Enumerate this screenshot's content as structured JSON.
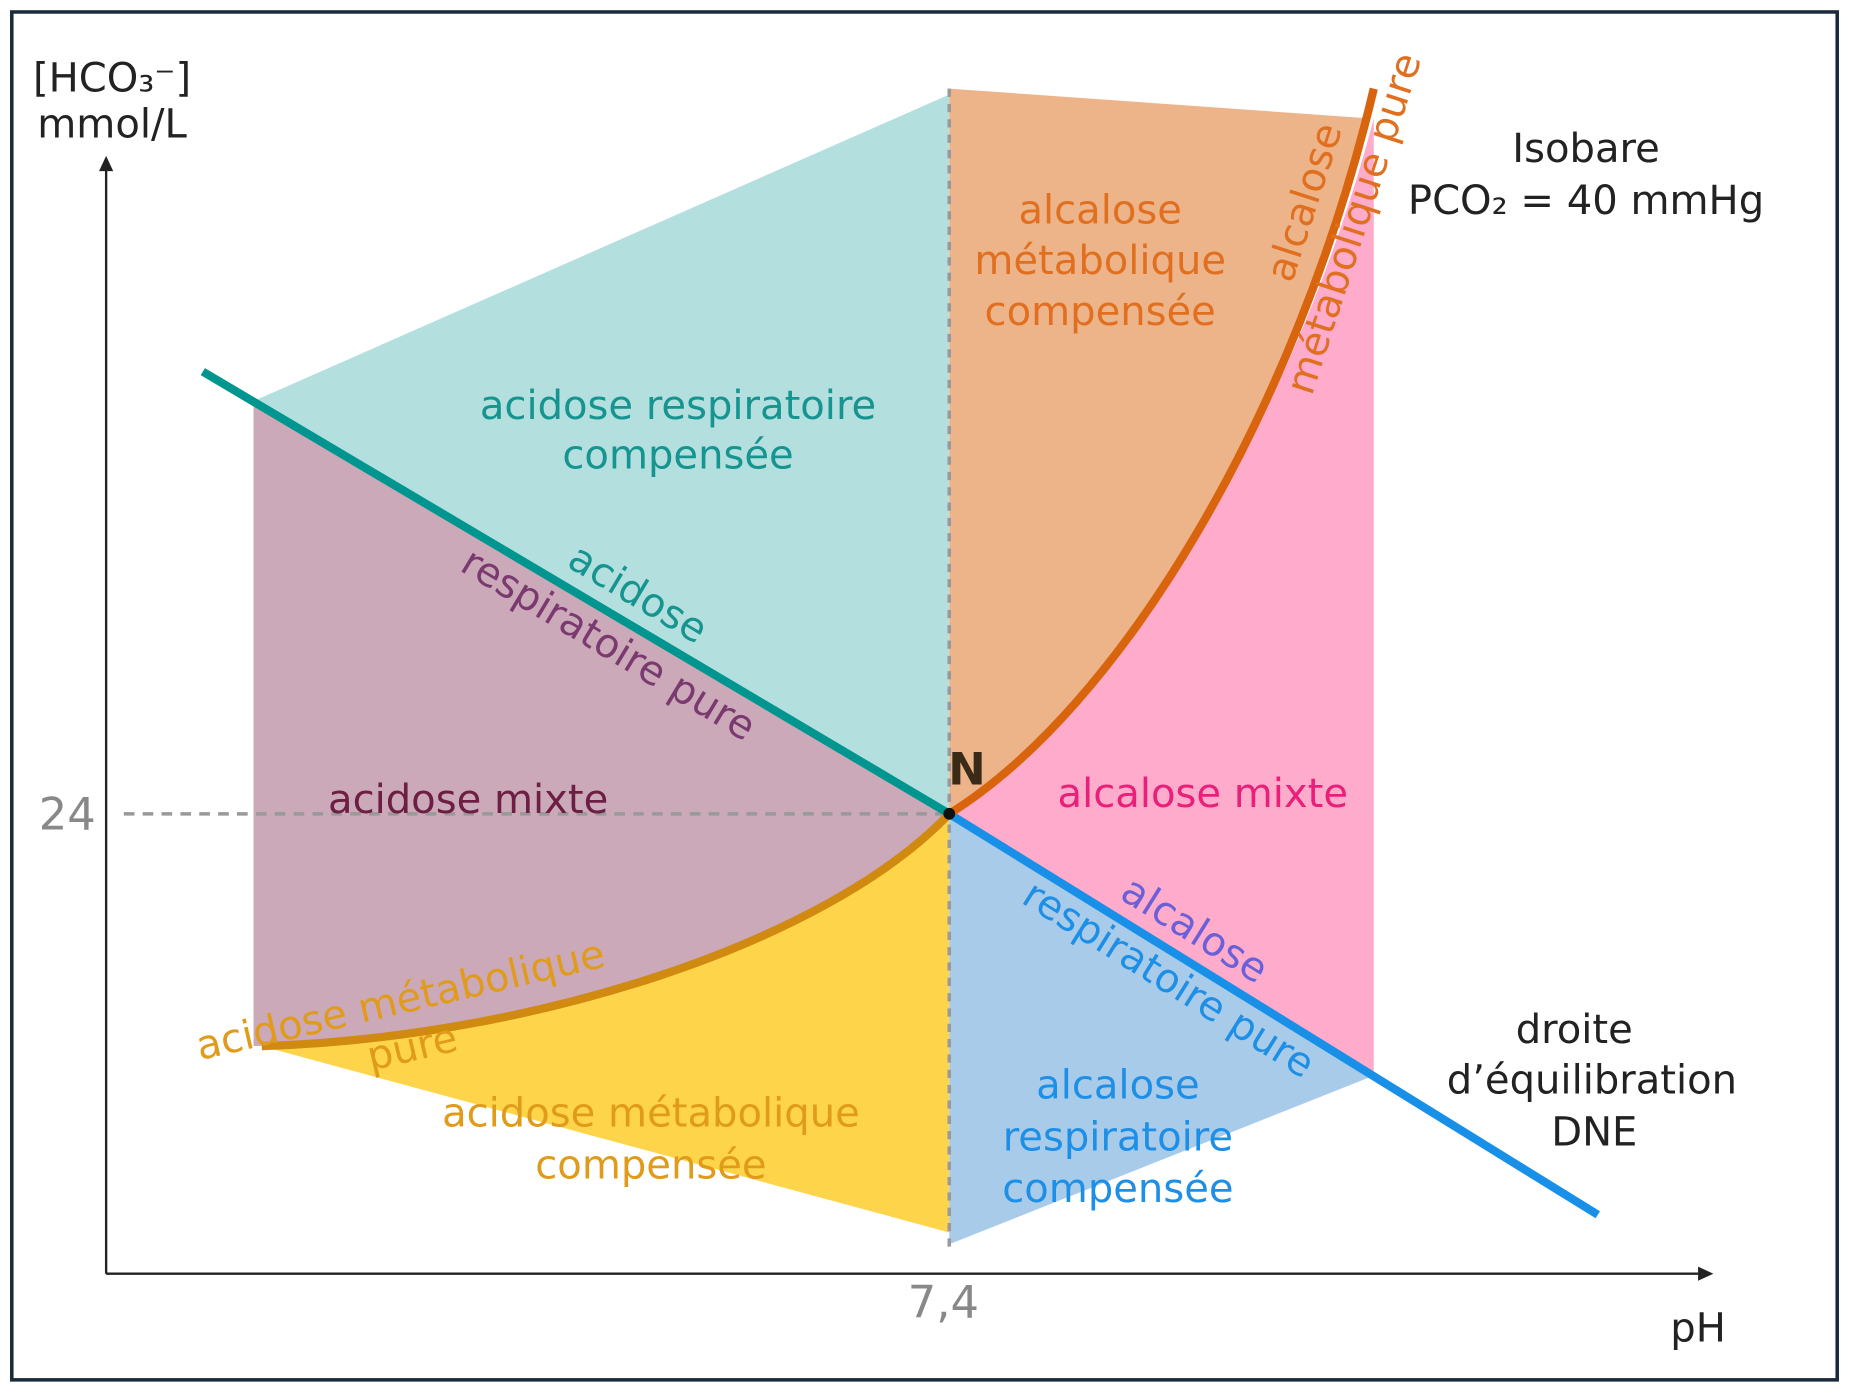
{
  "axes": {
    "y_label": [
      "[HCO₃⁻]",
      "mmol/L"
    ],
    "x_label": "pH",
    "y_tick": "24",
    "x_tick": "7,4"
  },
  "point": "N",
  "isobare": [
    "Isobare",
    "PCO₂ = 40 mmHg"
  ],
  "regions": {
    "acidose_respiratoire_compensee": [
      "acidose respiratoire",
      "compensée"
    ],
    "alcalose_metabolique_compensee": [
      "alcalose",
      "métabolique",
      "compensée"
    ],
    "acidose_mixte": "acidose mixte",
    "alcalose_mixte": "alcalose mixte",
    "acidose_metabolique_compensee": [
      "acidose métabolique",
      "compensée"
    ],
    "alcalose_respiratoire_compensee": [
      "alcalose",
      "respiratoire",
      "compensée"
    ]
  },
  "lines": {
    "acidose_respiratoire_pure": [
      "acidose",
      "respiratoire pure"
    ],
    "alcalose_respiratoire_pure": [
      "alcalose",
      "respiratoire pure"
    ],
    "acidose_metabolique_pure": [
      "acidose métabolique",
      "pure"
    ],
    "alcalose_metabolique_pure": [
      "alcalose",
      "métabolique pure"
    ],
    "dne": [
      "droite",
      "d’équilibration",
      "DNE"
    ]
  }
}
